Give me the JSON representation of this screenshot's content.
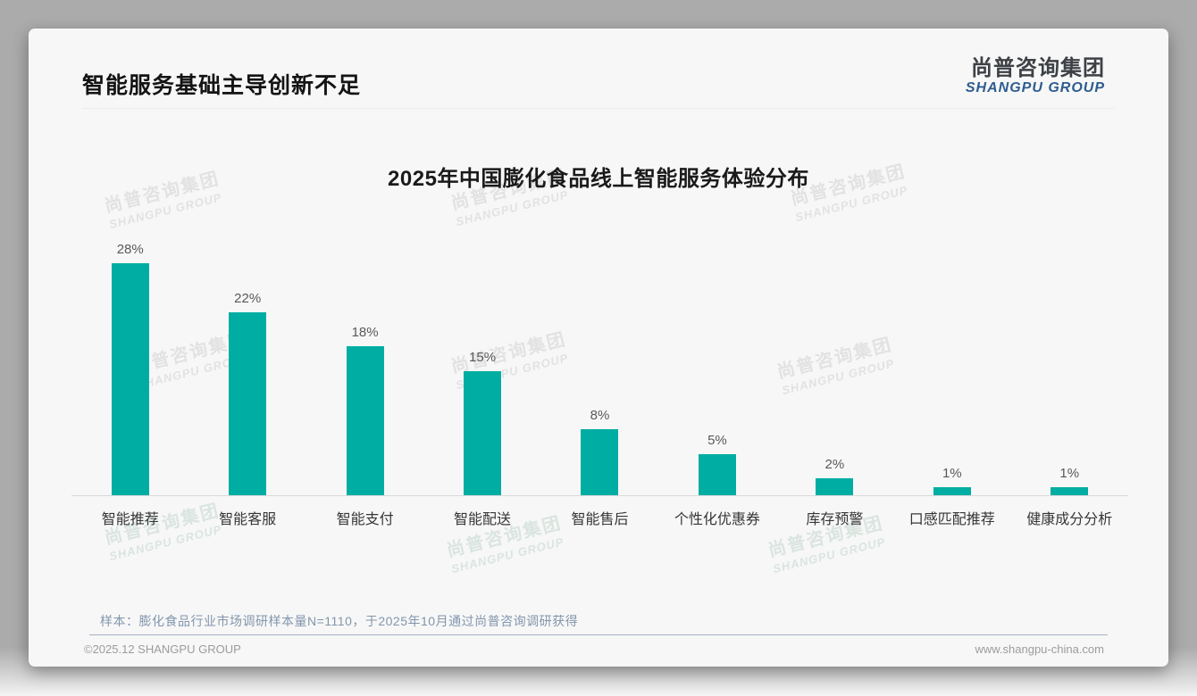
{
  "page": {
    "title": "智能服务基础主导创新不足",
    "source_note": "样本：膨化食品行业市场调研样本量N=1110，于2025年10月通过尚普咨询调研获得",
    "footer_left": "©2025.12 SHANGPU GROUP",
    "footer_right": "www.shangpu-china.com"
  },
  "brand": {
    "logo_cn": "尚普咨询集团",
    "logo_en": "SHANGPU GROUP",
    "logo_en_color": "#2d5c90",
    "watermark_line1": "尚普咨询集团",
    "watermark_line2": "SHANGPU GROUP"
  },
  "chart_data": {
    "type": "bar",
    "title": "2025年中国膨化食品线上智能服务体验分布",
    "categories": [
      "智能推荐",
      "智能客服",
      "智能支付",
      "智能配送",
      "智能售后",
      "个性化优惠券",
      "库存预警",
      "口感匹配推荐",
      "健康成分分析"
    ],
    "values": [
      28,
      22,
      18,
      15,
      8,
      5,
      2,
      1,
      1
    ],
    "value_labels": [
      "28%",
      "22%",
      "18%",
      "15%",
      "8%",
      "5%",
      "2%",
      "1%",
      "1%"
    ],
    "unit": "%",
    "bar_color": "#00ada3",
    "xlabel": "",
    "ylabel": "",
    "ylim": [
      0,
      30
    ],
    "grid": false,
    "legend": "none",
    "value_label_color": "#595959",
    "axis_line_color": "#d9d9d9"
  }
}
